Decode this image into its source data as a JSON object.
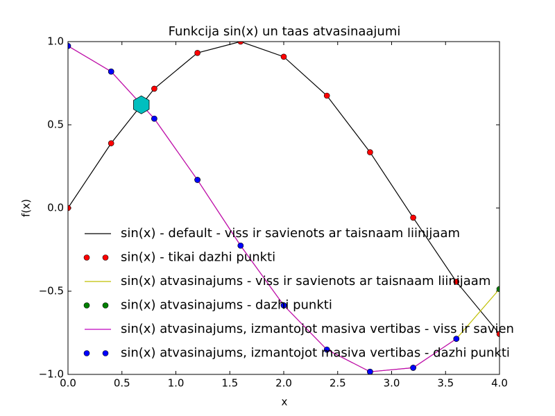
{
  "chart_data": {
    "type": "line",
    "title": "Funkcija sin(x) un taas atvasinaajumi",
    "xlabel": "x",
    "ylabel": "f(x)",
    "xlim": [
      0,
      4
    ],
    "ylim": [
      -1,
      1
    ],
    "xticks": [
      {
        "value": 0,
        "label": "0.0"
      },
      {
        "value": 0.5,
        "label": "0.5"
      },
      {
        "value": 1,
        "label": "1.0"
      },
      {
        "value": 1.5,
        "label": "1.5"
      },
      {
        "value": 2,
        "label": "2.0"
      },
      {
        "value": 2.5,
        "label": "2.5"
      },
      {
        "value": 3,
        "label": "3.0"
      },
      {
        "value": 3.5,
        "label": "3.5"
      },
      {
        "value": 4,
        "label": "4.0"
      }
    ],
    "yticks": [
      {
        "value": -1,
        "label": "−1.0"
      },
      {
        "value": -0.5,
        "label": "−0.5"
      },
      {
        "value": 0,
        "label": "0.0"
      },
      {
        "value": 0.5,
        "label": "0.5"
      },
      {
        "value": 1,
        "label": "1.0"
      }
    ],
    "series": [
      {
        "name": "sin(x) - default - viss ir savienots ar taisnaam liinijaam",
        "color": "#000000",
        "style": "line",
        "x": [
          0,
          0.4,
          0.8,
          1.2,
          1.6,
          2.0,
          2.4,
          2.8,
          3.2,
          3.6,
          4.0
        ],
        "values": [
          0,
          0.389,
          0.717,
          0.932,
          1.0,
          0.909,
          0.675,
          0.335,
          -0.058,
          -0.443,
          -0.757
        ]
      },
      {
        "name": "sin(x) - tikai dazhi punkti",
        "color": "#ff0000",
        "style": "markers",
        "x": [
          0,
          0.4,
          0.8,
          1.2,
          1.6,
          2.0,
          2.4,
          2.8,
          3.2,
          3.6,
          4.0
        ],
        "values": [
          0,
          0.389,
          0.717,
          0.932,
          1.0,
          0.909,
          0.675,
          0.335,
          -0.058,
          -0.443,
          -0.757
        ]
      },
      {
        "name": "sin(x) atvasinajums - viss ir savienots ar taisnaam liinijaam",
        "color": "#bfbf00",
        "style": "line",
        "x": [
          0,
          0.4,
          0.8,
          1.2,
          1.6,
          2.0,
          2.4,
          2.8,
          3.2,
          3.6,
          4.0
        ],
        "values": [
          0.974,
          0.82,
          0.537,
          0.169,
          -0.226,
          -0.585,
          -0.851,
          -0.984,
          -0.96,
          -0.786,
          -0.487
        ]
      },
      {
        "name": "sin(x) atvasinajums - dazhi punkti",
        "color": "#008000",
        "style": "markers",
        "x": [
          0,
          0.4,
          0.8,
          1.2,
          1.6,
          2.0,
          2.4,
          2.8,
          3.2,
          3.6,
          4.0
        ],
        "values": [
          0.974,
          0.82,
          0.537,
          0.169,
          -0.226,
          -0.585,
          -0.851,
          -0.984,
          -0.96,
          -0.786,
          -0.487
        ]
      },
      {
        "name": "sin(x) atvasinajums, izmantojot masiva vertibas - viss ir savien",
        "color": "#bf00bf",
        "style": "line",
        "x": [
          0,
          0.4,
          0.8,
          1.2,
          1.6,
          2.0,
          2.4,
          2.8,
          3.2,
          3.6
        ],
        "values": [
          0.974,
          0.82,
          0.537,
          0.169,
          -0.226,
          -0.585,
          -0.851,
          -0.984,
          -0.96,
          -0.786
        ]
      },
      {
        "name": "sin(x) atvasinajums, izmantojot masiva vertibas - dazhi punkti",
        "color": "#0000ff",
        "style": "markers",
        "x": [
          0,
          0.4,
          0.8,
          1.2,
          1.6,
          2.0,
          2.4,
          2.8,
          3.2,
          3.6
        ],
        "values": [
          0.974,
          0.82,
          0.537,
          0.169,
          -0.226,
          -0.585,
          -0.851,
          -0.984,
          -0.96,
          -0.786
        ]
      }
    ],
    "highlight": {
      "x": 0.68,
      "y": 0.62,
      "color": "#00bfbf"
    }
  }
}
